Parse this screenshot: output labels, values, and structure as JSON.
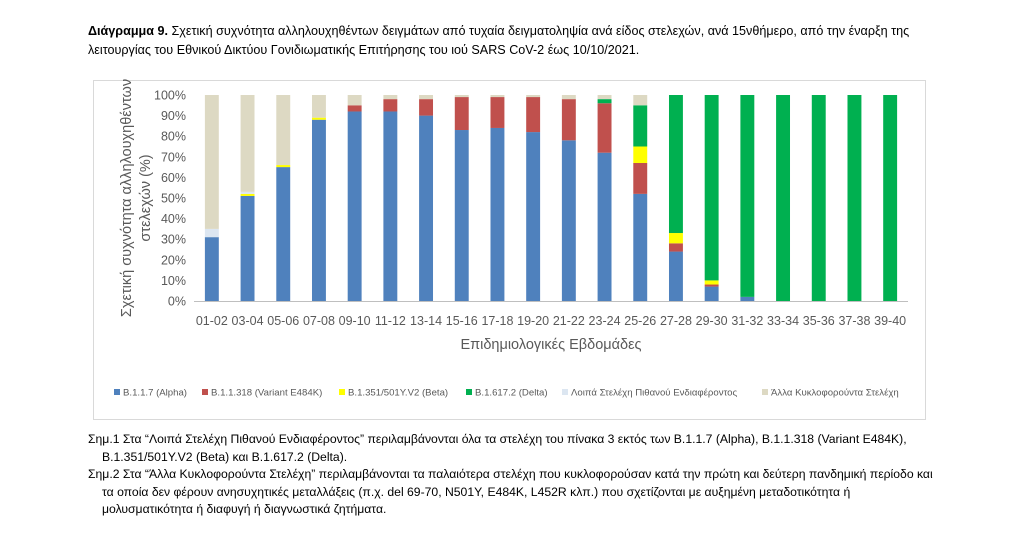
{
  "caption": {
    "label": "Διάγραμμα 9.",
    "text": " Σχετική συχνότητα αλληλουχηθέντων δειγμάτων από τυχαία δειγματοληψία ανά είδος στελεχών, ανά 15νθήμερο, από την έναρξη της λειτουργίας του Εθνικού Δικτύου Γονιδιωματικής Επιτήρησης του ιού SARS CoV-2 έως 10/10/2021."
  },
  "chart_data": {
    "type": "bar",
    "stacked": true,
    "title": "",
    "xlabel": "Επιδημιολογικές Εβδομάδες",
    "ylabel": "Σχετική συχνότητα αλληλουχηθέντων στελεχών (%)",
    "ylim": [
      0,
      100
    ],
    "yticks": [
      "0%",
      "10%",
      "20%",
      "30%",
      "40%",
      "50%",
      "60%",
      "70%",
      "80%",
      "90%",
      "100%"
    ],
    "grid": false,
    "legend_position": "bottom",
    "categories": [
      "01-02",
      "03-04",
      "05-06",
      "07-08",
      "09-10",
      "11-12",
      "13-14",
      "15-16",
      "17-18",
      "19-20",
      "21-22",
      "23-24",
      "25-26",
      "27-28",
      "29-30",
      "31-32",
      "33-34",
      "35-36",
      "37-38",
      "39-40"
    ],
    "series": [
      {
        "name": "B.1.1.7 (Alpha)",
        "color": "#4f81bd",
        "values": [
          31,
          51,
          65,
          88,
          92,
          92,
          90,
          83,
          84,
          82,
          78,
          72,
          52,
          24,
          7,
          2,
          0,
          0,
          0,
          0
        ]
      },
      {
        "name": "B.1.1.318 (Variant E484K)",
        "color": "#c0504d",
        "values": [
          0,
          0,
          0,
          0,
          3,
          6,
          8,
          16,
          15,
          17,
          20,
          24,
          15,
          4,
          1,
          0,
          0,
          0,
          0,
          0
        ]
      },
      {
        "name": "B.1.351/501Y.V2 (Beta)",
        "color": "#ffff00",
        "values": [
          0,
          1,
          1,
          1,
          0,
          0,
          0,
          0,
          0,
          0,
          0,
          0,
          8,
          5,
          2,
          0,
          0,
          0,
          0,
          0
        ]
      },
      {
        "name": "B.1.617.2 (Delta)",
        "color": "#00b050",
        "values": [
          0,
          0,
          0,
          0,
          0,
          0,
          0,
          0,
          0,
          0,
          0,
          2,
          20,
          67,
          90,
          98,
          100,
          100,
          100,
          100
        ]
      },
      {
        "name": "Λοιπά Στελέχη Πιθανού Ενδιαφέροντος",
        "color": "#dce6f1",
        "values": [
          4,
          1,
          0,
          0,
          0,
          0,
          0,
          0,
          0,
          0,
          0,
          0,
          0,
          0,
          0,
          0,
          0,
          0,
          0,
          0
        ]
      },
      {
        "name": "Άλλα Κυκλοφορούντα Στελέχη",
        "color": "#ddd9c3",
        "values": [
          65,
          47,
          34,
          11,
          5,
          2,
          2,
          1,
          1,
          1,
          2,
          2,
          5,
          0,
          0,
          0,
          0,
          0,
          0,
          0
        ]
      }
    ]
  },
  "notes": [
    "Σημ.1 Στα “Λοιπά Στελέχη Πιθανού Ενδιαφέροντος” περιλαμβάνονται όλα τα στελέχη του πίνακα 3 εκτός των B.1.1.7 (Alpha), B.1.1.318 (Variant E484K), B.1.351/501Y.V2 (Beta) και B.1.617.2 (Delta).",
    "Σημ.2 Στα “Άλλα Κυκλοφορούντα Στελέχη” περιλαμβάνονται τα παλαιότερα στελέχη που κυκλοφορούσαν κατά την πρώτη και δεύτερη πανδημική περίοδο και τα οποία δεν φέρουν ανησυχητικές μεταλλάξεις (π.χ. del 69-70, N501Y, E484K, L452R κλπ.) που σχετίζονται με αυξημένη μεταδοτικότητα ή μολυσματικότητα ή διαφυγή ή διαγνωστικά ζητήματα."
  ]
}
